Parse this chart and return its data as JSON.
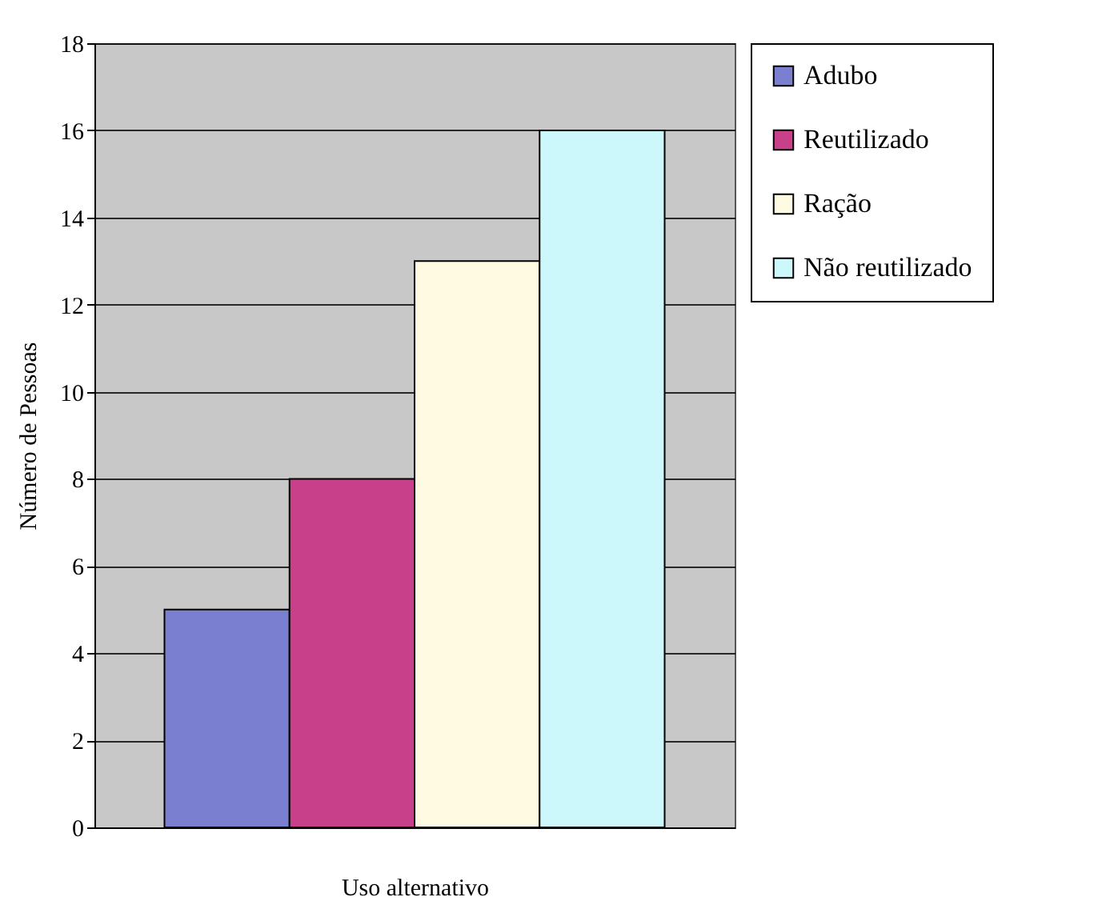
{
  "chart_data": {
    "type": "bar",
    "xlabel": "Uso alternativo",
    "ylabel": "Número de Pessoas",
    "categories": [
      null
    ],
    "series": [
      {
        "name": "Adubo",
        "color": "#7b7fd0",
        "values": [
          5
        ]
      },
      {
        "name": "Reutilizado",
        "color": "#c8408a",
        "values": [
          8
        ]
      },
      {
        "name": "Ração",
        "color": "#fffbe2",
        "values": [
          13
        ]
      },
      {
        "name": "Não reutilizado",
        "color": "#ccf8fc",
        "values": [
          16
        ]
      }
    ],
    "ylim": [
      0,
      18
    ],
    "yticks": [
      0,
      2,
      4,
      6,
      8,
      10,
      12,
      14,
      16,
      18
    ],
    "grid": "y",
    "legend": "right",
    "tick_labels": "y"
  }
}
